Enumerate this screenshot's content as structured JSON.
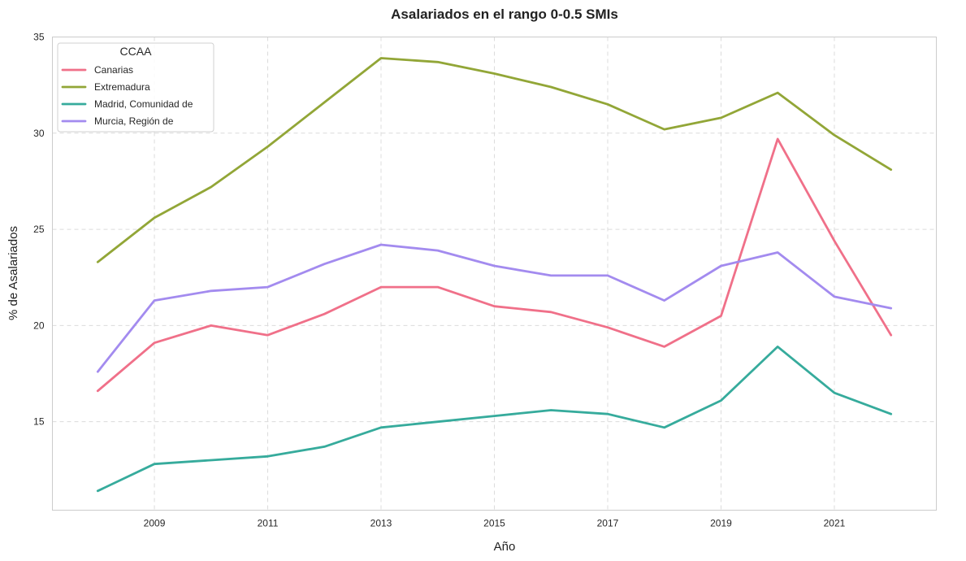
{
  "chart_data": {
    "type": "line",
    "title": "Asalariados en el rango 0-0.5 SMIs",
    "xlabel": "Año",
    "ylabel": "% de Asalariados",
    "x": [
      2008,
      2009,
      2010,
      2011,
      2012,
      2013,
      2014,
      2015,
      2016,
      2017,
      2018,
      2019,
      2020,
      2021,
      2022
    ],
    "xlim": [
      2007.2,
      2022.8
    ],
    "ylim": [
      10.4,
      35
    ],
    "x_ticks": [
      2009,
      2011,
      2013,
      2015,
      2017,
      2019,
      2021
    ],
    "y_ticks": [
      15,
      20,
      25,
      30,
      35
    ],
    "grid": true,
    "legend": {
      "title": "CCAA",
      "placement": "top-left"
    },
    "series": [
      {
        "name": "Canarias",
        "color": "#f07089",
        "values": [
          16.6,
          19.1,
          20.0,
          19.5,
          20.6,
          22.0,
          22.0,
          21.0,
          20.7,
          19.9,
          18.9,
          20.5,
          29.7,
          24.4,
          19.5
        ]
      },
      {
        "name": "Extremadura",
        "color": "#92a637",
        "values": [
          23.3,
          25.6,
          27.2,
          29.3,
          31.6,
          33.9,
          33.7,
          33.1,
          32.4,
          31.5,
          30.2,
          30.8,
          32.1,
          29.9,
          28.1
        ]
      },
      {
        "name": "Madrid, Comunidad de",
        "color": "#36ab9c",
        "values": [
          11.4,
          12.8,
          13.0,
          13.2,
          13.7,
          14.7,
          15.0,
          15.3,
          15.6,
          15.4,
          14.7,
          16.1,
          18.9,
          16.5,
          15.4
        ]
      },
      {
        "name": "Murcia, Región de",
        "color": "#a38bef",
        "values": [
          17.6,
          21.3,
          21.8,
          22.0,
          23.2,
          24.2,
          23.9,
          23.1,
          22.6,
          22.6,
          21.3,
          23.1,
          23.8,
          21.5,
          20.9
        ]
      }
    ]
  }
}
